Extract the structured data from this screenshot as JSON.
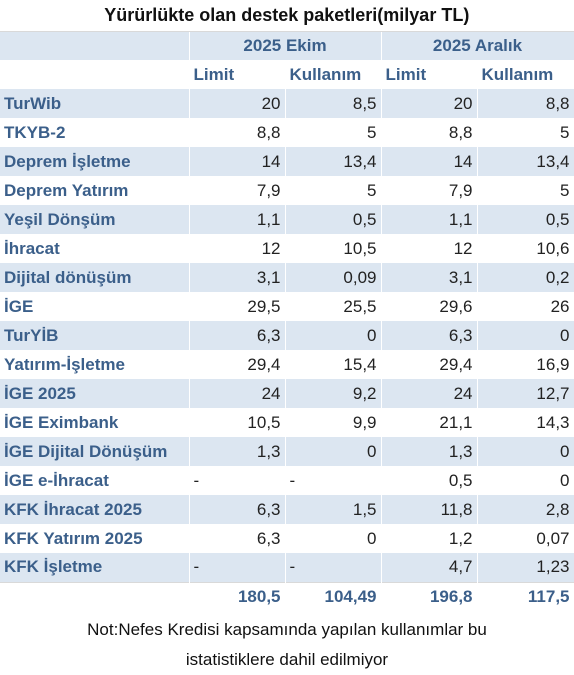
{
  "title": "Yürürlükte olan destek paketleri(milyar TL)",
  "periods": [
    "2025 Ekim",
    "2025 Aralık"
  ],
  "subheaders": [
    "Limit",
    "Kullanım",
    "Limit",
    "Kullanım"
  ],
  "rows": [
    {
      "name": "TurWib",
      "v": [
        "20",
        "8,5",
        "20",
        "8,8"
      ]
    },
    {
      "name": "TKYB-2",
      "v": [
        "8,8",
        "5",
        "8,8",
        "5"
      ]
    },
    {
      "name": "Deprem İşletme",
      "v": [
        "14",
        "13,4",
        "14",
        "13,4"
      ]
    },
    {
      "name": "Deprem Yatırım",
      "v": [
        "7,9",
        "5",
        "7,9",
        "5"
      ]
    },
    {
      "name": "Yeşil Dönşüm",
      "v": [
        "1,1",
        "0,5",
        "1,1",
        "0,5"
      ]
    },
    {
      "name": "İhracat",
      "v": [
        "12",
        "10,5",
        "12",
        "10,6"
      ]
    },
    {
      "name": "Dijital dönüşüm",
      "v": [
        "3,1",
        "0,09",
        "3,1",
        "0,2"
      ]
    },
    {
      "name": "İGE",
      "v": [
        "29,5",
        "25,5",
        "29,6",
        "26"
      ]
    },
    {
      "name": "TurYİB",
      "v": [
        "6,3",
        "0",
        "6,3",
        "0"
      ]
    },
    {
      "name": "Yatırım-İşletme",
      "v": [
        "29,4",
        "15,4",
        "29,4",
        "16,9"
      ]
    },
    {
      "name": "İGE 2025",
      "v": [
        "24",
        "9,2",
        "24",
        "12,7"
      ]
    },
    {
      "name": "İGE Eximbank",
      "v": [
        "10,5",
        "9,9",
        "21,1",
        "14,3"
      ]
    },
    {
      "name": "İGE Dijital Dönüşüm",
      "v": [
        "1,3",
        "0",
        "1,3",
        "0"
      ]
    },
    {
      "name": "İGE e-İhracat",
      "v": [
        "-",
        "-",
        "0,5",
        "0"
      ]
    },
    {
      "name": "KFK İhracat 2025",
      "v": [
        "6,3",
        "1,5",
        "11,8",
        "2,8"
      ]
    },
    {
      "name": "KFK Yatırım 2025",
      "v": [
        "6,3",
        "0",
        "1,2",
        "0,07"
      ]
    },
    {
      "name": "KFK İşletme",
      "v": [
        "-",
        "-",
        "4,7",
        "1,23"
      ]
    }
  ],
  "totals": [
    "180,5",
    "104,49",
    "196,8",
    "117,5"
  ],
  "note_line1": "Not:Nefes Kredisi kapsamında yapılan kullanımlar bu",
  "note_line2": "istatistiklere dahil edilmiyor"
}
